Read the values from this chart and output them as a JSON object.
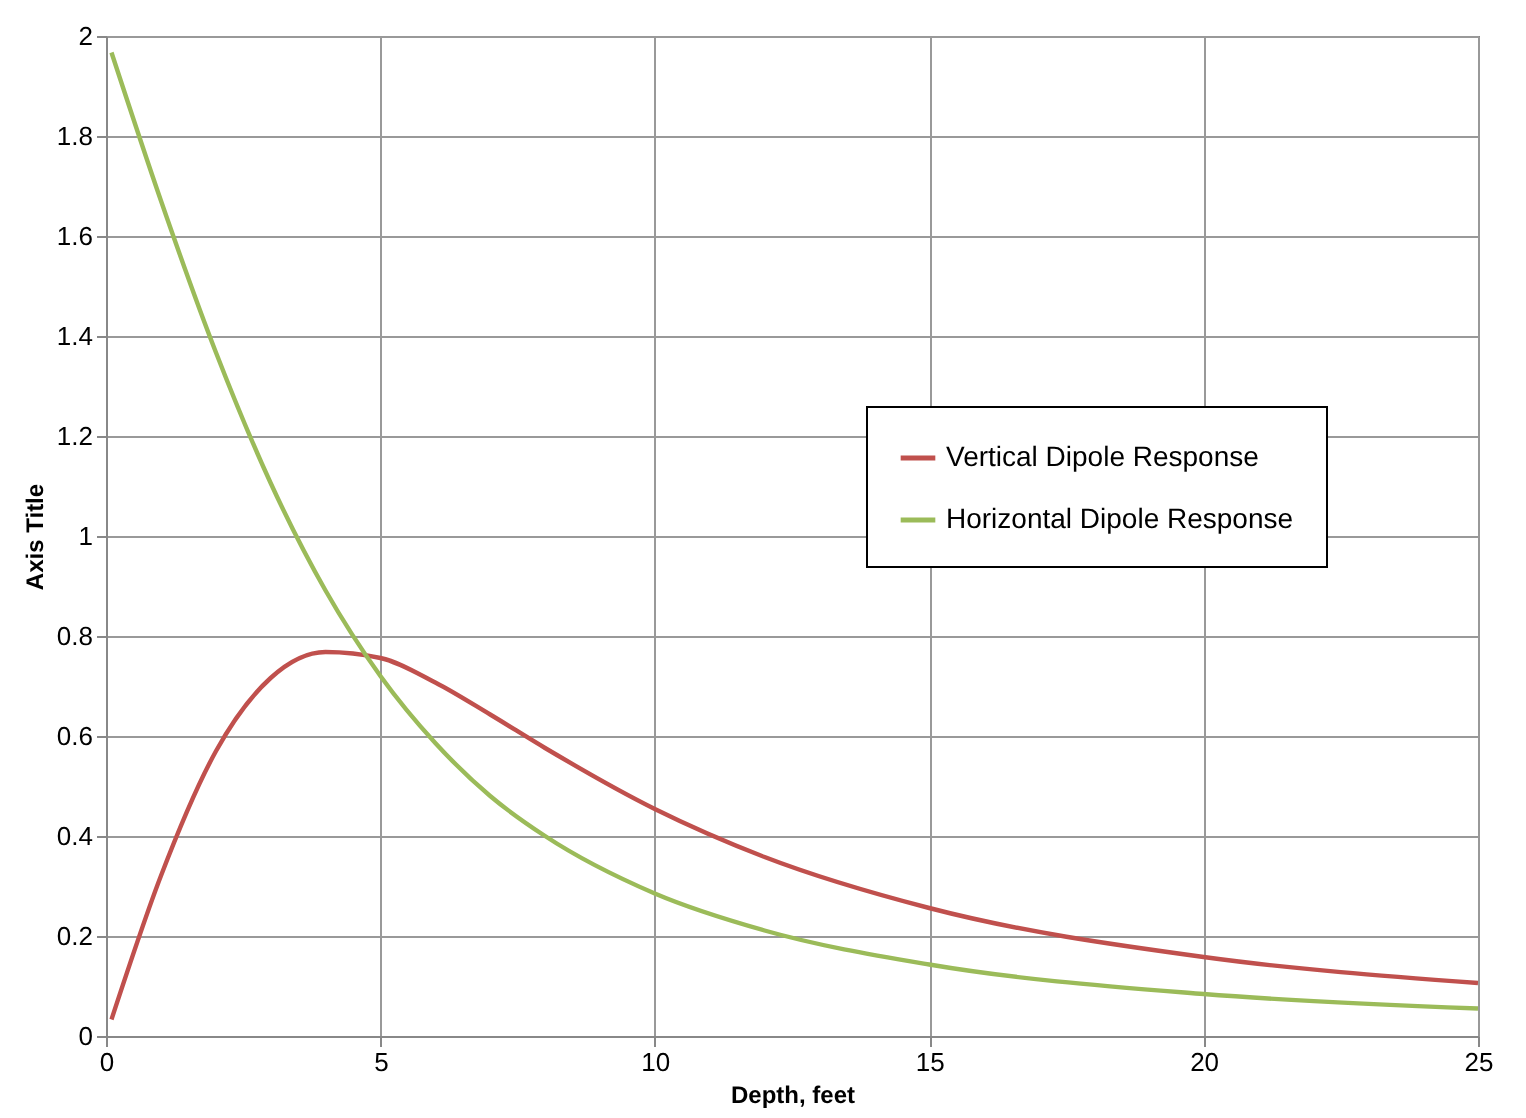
{
  "chart_data": {
    "type": "line",
    "xlabel": "Depth, feet",
    "ylabel": "Axis Title",
    "x": [
      0.1,
      1,
      2,
      3,
      4,
      5,
      6,
      7,
      8,
      10,
      12,
      15,
      20,
      25
    ],
    "series": [
      {
        "name": "Vertical Dipole Response",
        "color": "#c0504d",
        "values": [
          0.033,
          0.32,
          0.569,
          0.716,
          0.768,
          0.756,
          0.707,
          0.643,
          0.576,
          0.454,
          0.358,
          0.256,
          0.158,
          0.106
        ]
      },
      {
        "name": "Horizontal Dipole Response",
        "color": "#9bbb59",
        "values": [
          1.967,
          1.671,
          1.368,
          1.106,
          0.891,
          0.72,
          0.586,
          0.48,
          0.4,
          0.285,
          0.211,
          0.143,
          0.084,
          0.055
        ]
      }
    ],
    "xlim": [
      0,
      25
    ],
    "xticks": [
      0,
      5,
      10,
      15,
      20,
      25
    ],
    "ylim": [
      0,
      2
    ],
    "yticks": [
      0,
      0.2,
      0.4,
      0.6,
      0.8,
      1,
      1.2,
      1.4,
      1.6,
      1.8,
      2
    ],
    "grid": true,
    "legend": "right",
    "marker": "none",
    "line_style": "solid"
  }
}
